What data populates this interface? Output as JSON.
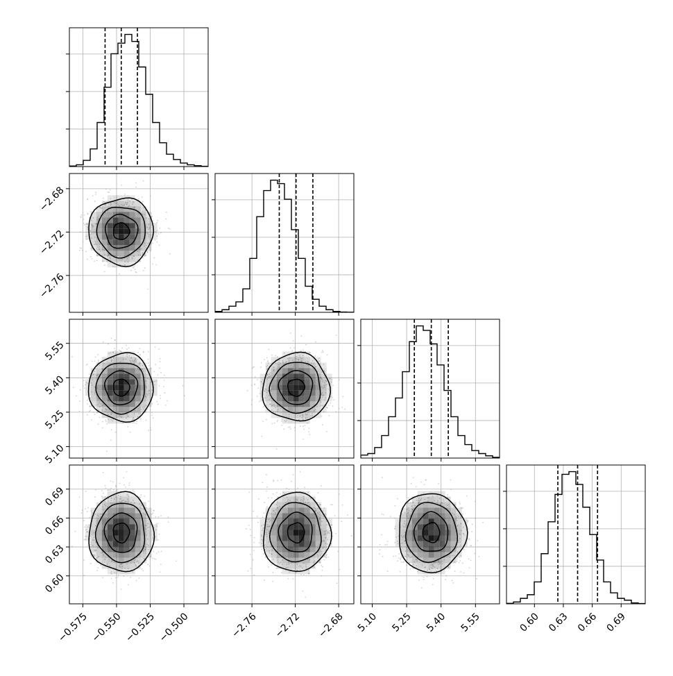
{
  "chart_data": {
    "type": "corner",
    "title": "",
    "parameters": [
      {
        "label": "",
        "range": [
          -0.585,
          -0.482
        ],
        "ticks": [
          "−0.575",
          "−0.550",
          "−0.525",
          "−0.500"
        ],
        "tick_values": [
          -0.575,
          -0.55,
          -0.525,
          -0.5
        ],
        "quantiles": [
          -0.5585,
          -0.5465,
          -0.5345
        ],
        "median": -0.5465,
        "sigma": 0.012,
        "hist_bins": [
          0.006,
          0.02,
          0.07,
          0.2,
          0.5,
          0.9,
          1.28,
          1.4,
          1.5,
          1.42,
          1.13,
          0.82,
          0.5,
          0.27,
          0.14,
          0.08,
          0.04,
          0.02,
          0.01,
          0.003
        ]
      },
      {
        "label": "",
        "range": [
          -2.794,
          -2.666
        ],
        "ticks": [
          "−2.76",
          "−2.72",
          "−2.68"
        ],
        "tick_values": [
          -2.76,
          -2.72,
          -2.68
        ],
        "quantiles": [
          -2.7348,
          -2.7193,
          -2.7038
        ],
        "median": -2.7193,
        "sigma": 0.0155,
        "hist_bins": [
          0.01,
          0.03,
          0.07,
          0.12,
          0.27,
          0.62,
          1.1,
          1.4,
          1.52,
          1.48,
          1.3,
          0.95,
          0.62,
          0.3,
          0.15,
          0.07,
          0.03,
          0.01,
          0.003,
          0.001
        ]
      },
      {
        "label": "",
        "range": [
          5.05,
          5.655
        ],
        "ticks": [
          "5.10",
          "5.25",
          "5.40",
          "5.55"
        ],
        "tick_values": [
          5.1,
          5.25,
          5.4,
          5.55
        ],
        "quantiles": [
          5.2835,
          5.3575,
          5.4315
        ],
        "median": 5.3575,
        "sigma": 0.074,
        "hist_bins": [
          0.04,
          0.06,
          0.14,
          0.3,
          0.55,
          0.8,
          1.15,
          1.55,
          1.76,
          1.7,
          1.52,
          1.24,
          0.9,
          0.55,
          0.3,
          0.18,
          0.1,
          0.06,
          0.03,
          0.01
        ]
      },
      {
        "label": "",
        "range": [
          0.571,
          0.715
        ],
        "ticks": [
          "0.60",
          "0.63",
          "0.66",
          "0.69"
        ],
        "tick_values": [
          0.6,
          0.63,
          0.66,
          0.69
        ],
        "quantiles": [
          0.6243,
          0.6448,
          0.6655
        ],
        "median": 0.6448,
        "sigma": 0.0205,
        "hist_bins": [
          0.005,
          0.02,
          0.06,
          0.1,
          0.24,
          0.55,
          0.9,
          1.2,
          1.42,
          1.45,
          1.31,
          1.06,
          0.76,
          0.48,
          0.24,
          0.12,
          0.06,
          0.04,
          0.01,
          0.003
        ]
      }
    ],
    "y_ticks_left": [
      {
        "row": 1,
        "ticks": [
          "−2.68",
          "−2.72",
          "−2.76"
        ],
        "tick_values": [
          -2.68,
          -2.72,
          -2.76
        ]
      },
      {
        "row": 2,
        "ticks": [
          "5.55",
          "5.40",
          "5.25",
          "5.10"
        ],
        "tick_values": [
          5.55,
          5.4,
          5.25,
          5.1
        ]
      },
      {
        "row": 3,
        "ticks": [
          "0.69",
          "0.66",
          "0.63",
          "0.60"
        ],
        "tick_values": [
          0.69,
          0.66,
          0.63,
          0.6
        ]
      }
    ],
    "hist_ytick_count": 3,
    "grid": true,
    "legend": "none",
    "colors": {
      "line": "#000000",
      "grid": "#b0b0b0",
      "points": "#9a9a9a",
      "density": "#000000"
    }
  }
}
